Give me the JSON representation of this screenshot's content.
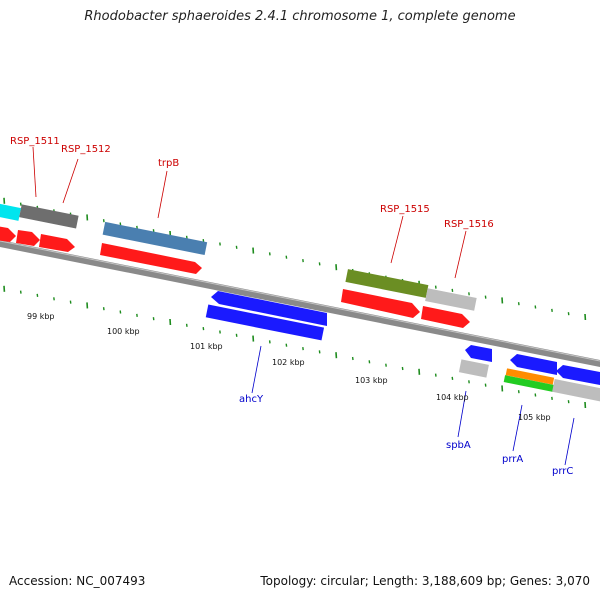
{
  "title": "Rhodobacter sphaeroides 2.4.1 chromosome 1, complete genome",
  "footer": {
    "accession": "Accession: NC_007493",
    "summary": "Topology: circular; Length: 3,188,609 bp; Genes: 3,070"
  },
  "scale_labels": [
    "99 kbp",
    "100 kbp",
    "101 kbp",
    "102 kbp",
    "103 kbp",
    "104 kbp",
    "105 kbp"
  ],
  "gene_labels": [
    {
      "name": "RSP_1511",
      "color": "#cc0000"
    },
    {
      "name": "RSP_1512",
      "color": "#cc0000"
    },
    {
      "name": "trpB",
      "color": "#cc0000"
    },
    {
      "name": "RSP_1515",
      "color": "#cc0000"
    },
    {
      "name": "RSP_1516",
      "color": "#cc0000"
    },
    {
      "name": "ahcY",
      "color": "#0000cc"
    },
    {
      "name": "spbA",
      "color": "#0000cc"
    },
    {
      "name": "prrA",
      "color": "#0000cc"
    },
    {
      "name": "prrC",
      "color": "#0000cc"
    }
  ],
  "colors": {
    "backbone": "#8a8a8a",
    "tick": "#1e8c1e",
    "forward_cds": "#ff1a1a",
    "reverse_cds": "#1a1aff",
    "teal": "#4a7fb0",
    "olive": "#6b8e23",
    "grey": "#a8a8a8",
    "cyan": "#00e5ee",
    "orange": "#ff8c00",
    "green": "#22cc22"
  }
}
